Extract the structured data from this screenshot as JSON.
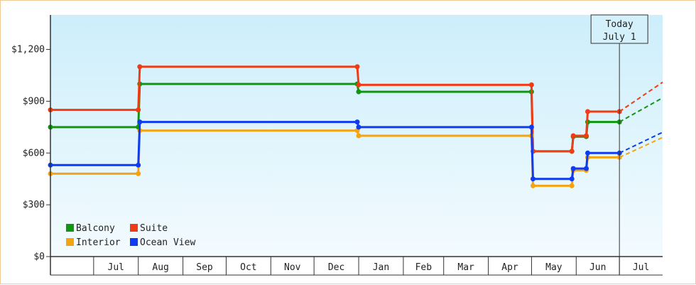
{
  "chart_data": {
    "type": "line",
    "line_shape": "step",
    "x_axis": {
      "start": "2024-06-01",
      "end": "2025-07-31",
      "tick_labels": [
        "Jul",
        "Aug",
        "Sep",
        "Oct",
        "Nov",
        "Dec",
        "Jan",
        "Feb",
        "Mar",
        "Apr",
        "May",
        "Jun",
        "Jul"
      ]
    },
    "y_axis": {
      "ylim": [
        0,
        1400
      ],
      "ticks": [
        0,
        300,
        600,
        900,
        1200
      ],
      "tick_labels": [
        "$0",
        "$300",
        "$600",
        "$900",
        "$1,200"
      ]
    },
    "grid": false,
    "legend_position": "bottom-left",
    "today": {
      "date": "2025-07-01",
      "line1": "Today",
      "line2": "July 1"
    },
    "series": [
      {
        "name": "Balcony",
        "color": "#119611",
        "points": [
          [
            "2024-06-01",
            750
          ],
          [
            "2024-08-01",
            750
          ],
          [
            "2024-08-02",
            1000
          ],
          [
            "2024-12-31",
            1000
          ],
          [
            "2025-01-01",
            955
          ],
          [
            "2025-05-01",
            955
          ],
          [
            "2025-05-02",
            610
          ],
          [
            "2025-05-29",
            610
          ],
          [
            "2025-05-30",
            695
          ],
          [
            "2025-06-08",
            695
          ],
          [
            "2025-06-09",
            780
          ],
          [
            "2025-07-01",
            780
          ]
        ],
        "forecast": [
          [
            "2025-07-01",
            780
          ],
          [
            "2025-07-31",
            920
          ]
        ]
      },
      {
        "name": "Suite",
        "color": "#f03c14",
        "points": [
          [
            "2024-06-01",
            850
          ],
          [
            "2024-08-01",
            850
          ],
          [
            "2024-08-02",
            1100
          ],
          [
            "2024-12-31",
            1100
          ],
          [
            "2025-01-01",
            995
          ],
          [
            "2025-05-01",
            995
          ],
          [
            "2025-05-02",
            610
          ],
          [
            "2025-05-29",
            610
          ],
          [
            "2025-05-30",
            700
          ],
          [
            "2025-06-08",
            700
          ],
          [
            "2025-06-09",
            840
          ],
          [
            "2025-07-01",
            840
          ]
        ],
        "forecast": [
          [
            "2025-07-01",
            840
          ],
          [
            "2025-07-31",
            1010
          ]
        ]
      },
      {
        "name": "Interior",
        "color": "#f5a411",
        "points": [
          [
            "2024-06-01",
            480
          ],
          [
            "2024-08-01",
            480
          ],
          [
            "2024-08-02",
            730
          ],
          [
            "2024-12-31",
            730
          ],
          [
            "2025-01-01",
            700
          ],
          [
            "2025-05-01",
            700
          ],
          [
            "2025-05-02",
            410
          ],
          [
            "2025-05-29",
            410
          ],
          [
            "2025-05-30",
            500
          ],
          [
            "2025-06-08",
            500
          ],
          [
            "2025-06-09",
            575
          ],
          [
            "2025-07-01",
            575
          ]
        ],
        "forecast": [
          [
            "2025-07-01",
            575
          ],
          [
            "2025-07-31",
            690
          ]
        ]
      },
      {
        "name": "Ocean View",
        "color": "#0f3cf0",
        "points": [
          [
            "2024-06-01",
            530
          ],
          [
            "2024-08-01",
            530
          ],
          [
            "2024-08-02",
            780
          ],
          [
            "2024-12-31",
            780
          ],
          [
            "2025-01-01",
            750
          ],
          [
            "2025-05-01",
            750
          ],
          [
            "2025-05-02",
            450
          ],
          [
            "2025-05-29",
            450
          ],
          [
            "2025-05-30",
            510
          ],
          [
            "2025-06-08",
            510
          ],
          [
            "2025-06-09",
            600
          ],
          [
            "2025-07-01",
            600
          ]
        ],
        "forecast": [
          [
            "2025-07-01",
            600
          ],
          [
            "2025-07-31",
            720
          ]
        ]
      }
    ]
  }
}
